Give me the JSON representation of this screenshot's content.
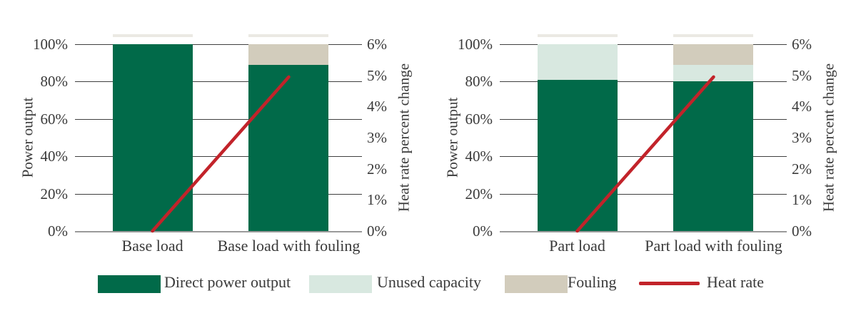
{
  "colors": {
    "direct": "#016a49",
    "unused": "#d8e8e0",
    "fouling": "#d2ccbc",
    "heat_rate": "#c2232a",
    "grid": "#3f3f3f",
    "baseline": "#9a9a9a",
    "bar_cap": "#ebe9e3",
    "text": "#3a3a3a"
  },
  "legend": [
    {
      "label": "Direct power output",
      "type": "swatch",
      "color_key": "direct"
    },
    {
      "label": "Unused capacity",
      "type": "swatch",
      "color_key": "unused"
    },
    {
      "label": "Fouling",
      "type": "swatch",
      "color_key": "fouling"
    },
    {
      "label": "Heat rate",
      "type": "line",
      "color_key": "heat_rate"
    }
  ],
  "chart_data": [
    {
      "type": "bar",
      "title": "",
      "categories": [
        "Base load",
        "Base load with fouling"
      ],
      "series": [
        {
          "name": "Direct power output",
          "color_key": "direct",
          "values": [
            100,
            89
          ]
        },
        {
          "name": "Unused capacity",
          "color_key": "unused",
          "values": [
            0,
            0
          ]
        },
        {
          "name": "Fouling",
          "color_key": "fouling",
          "values": [
            0,
            11
          ]
        }
      ],
      "line_series": {
        "name": "Heat rate",
        "axis": "right",
        "values": [
          0,
          4.95
        ]
      },
      "ylabel_left": "Power output",
      "ylabel_right": "Heat rate percent change",
      "yleft_range": [
        0,
        100
      ],
      "yright_range": [
        0,
        6
      ],
      "grid": true,
      "left_ticks": [
        "100%",
        "80%",
        "60%",
        "40%",
        "20%",
        "0%"
      ],
      "right_ticks": [
        "6%",
        "5%",
        "4%",
        "3%",
        "2%",
        "1%",
        "0%"
      ]
    },
    {
      "type": "bar",
      "title": "",
      "categories": [
        "Part load",
        "Part load with fouling"
      ],
      "series": [
        {
          "name": "Direct power output",
          "color_key": "direct",
          "values": [
            81,
            80
          ]
        },
        {
          "name": "Unused capacity",
          "color_key": "unused",
          "values": [
            19,
            9
          ]
        },
        {
          "name": "Fouling",
          "color_key": "fouling",
          "values": [
            0,
            11
          ]
        }
      ],
      "line_series": {
        "name": "Heat rate",
        "axis": "right",
        "values": [
          0,
          4.95
        ]
      },
      "ylabel_left": "Power output",
      "ylabel_right": "Heat rate percent change",
      "yleft_range": [
        0,
        100
      ],
      "yright_range": [
        0,
        6
      ],
      "grid": true,
      "left_ticks": [
        "100%",
        "80%",
        "60%",
        "40%",
        "20%",
        "0%"
      ],
      "right_ticks": [
        "6%",
        "5%",
        "4%",
        "3%",
        "2%",
        "1%",
        "0%"
      ]
    }
  ]
}
